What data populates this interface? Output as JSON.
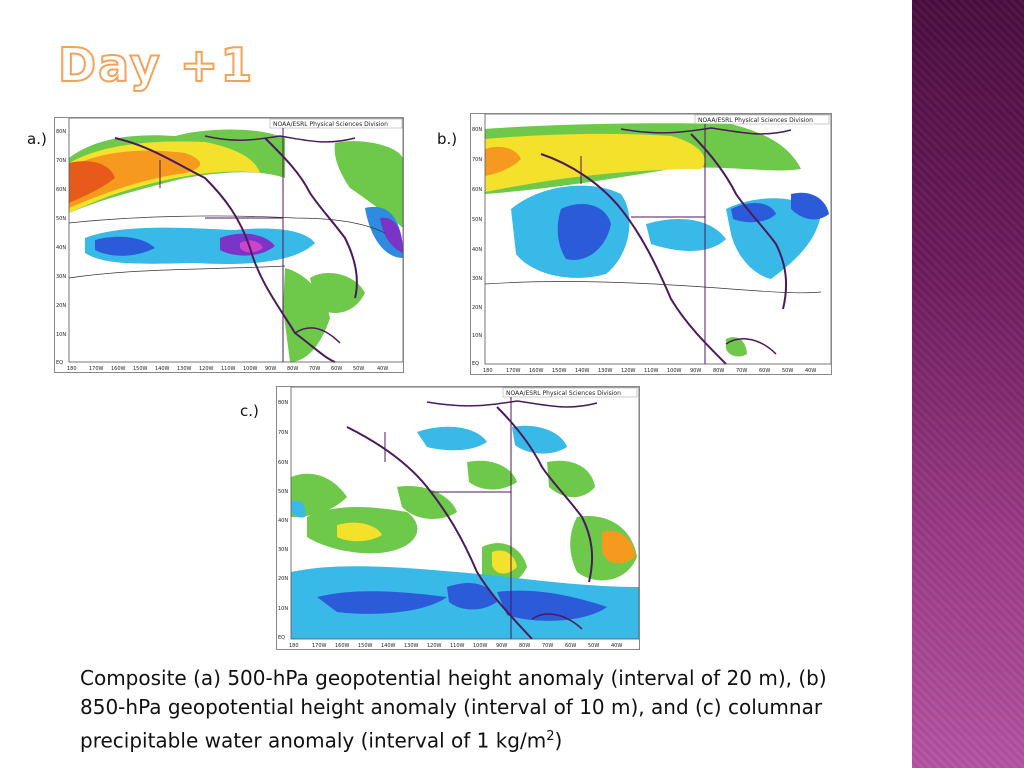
{
  "slide": {
    "title": "Day +1",
    "panels": [
      {
        "label": "a.)",
        "credit": "NOAA/ESRL Physical Sciences Division",
        "lat_ticks": [
          "80N",
          "70N",
          "60N",
          "50N",
          "40N",
          "30N",
          "20N",
          "10N",
          "EQ"
        ],
        "lon_ticks": [
          "180",
          "170W",
          "160W",
          "150W",
          "140W",
          "130W",
          "120W",
          "110W",
          "100W",
          "90W",
          "80W",
          "70W",
          "60W",
          "50W",
          "40W"
        ]
      },
      {
        "label": "b.)",
        "credit": "NOAA/ESRL Physical Sciences Division",
        "lat_ticks": [
          "80N",
          "70N",
          "60N",
          "50N",
          "40N",
          "30N",
          "20N",
          "10N",
          "EQ"
        ],
        "lon_ticks": [
          "180",
          "170W",
          "160W",
          "150W",
          "140W",
          "130W",
          "120W",
          "110W",
          "100W",
          "90W",
          "80W",
          "70W",
          "60W",
          "50W",
          "40W"
        ]
      },
      {
        "label": "c.)",
        "credit": "NOAA/ESRL Physical Sciences Division",
        "lat_ticks": [
          "80N",
          "70N",
          "60N",
          "50N",
          "40N",
          "30N",
          "20N",
          "10N",
          "EQ"
        ],
        "lon_ticks": [
          "180",
          "170W",
          "160W",
          "150W",
          "140W",
          "130W",
          "120W",
          "110W",
          "100W",
          "90W",
          "80W",
          "70W",
          "60W",
          "50W",
          "40W"
        ]
      }
    ],
    "caption_main": "Composite (a) 500-hPa geopotential height anomaly (interval of 20 m), (b) 850-hPa geopotential height anomaly (interval of 10 m), and (c) columnar precipitable water anomaly (interval of 1 kg/m",
    "caption_sup": "2",
    "caption_end": ")"
  }
}
